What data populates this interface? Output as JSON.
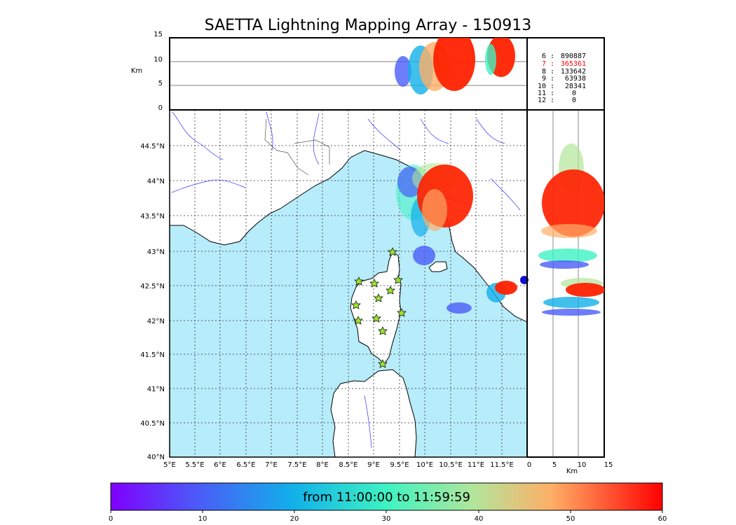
{
  "title": "SAETTA Lightning Mapping Array - 150913",
  "km_label": "Km",
  "height_ticks": [
    "15",
    "10",
    "5",
    "0"
  ],
  "lon_ticks": [
    "5°E",
    "5.5°E",
    "6°E",
    "6.5°E",
    "7°E",
    "7.5°E",
    "8°E",
    "8.5°E",
    "9°E",
    "9.5°E",
    "10°E",
    "10.5°E",
    "11°E",
    "11.5°E"
  ],
  "lat_ticks": [
    "44.5°N",
    "44°N",
    "43.5°N",
    "43°N",
    "42.5°N",
    "42°N",
    "41.5°N",
    "41°N",
    "40.5°N",
    "40°N"
  ],
  "right_km_ticks": [
    "0",
    "5",
    "10",
    "15"
  ],
  "stations": [
    {
      "n": "6",
      "v": "890887",
      "color": "#000000"
    },
    {
      "n": "7",
      "v": "365361",
      "color": "#ff0000"
    },
    {
      "n": "8",
      "v": "133642",
      "color": "#000000"
    },
    {
      "n": "9",
      "v": "63938",
      "color": "#000000"
    },
    {
      "n": "10",
      "v": "28341",
      "color": "#000000"
    },
    {
      "n": "11",
      "v": "0",
      "color": "#000000"
    },
    {
      "n": "12",
      "v": "0",
      "color": "#000000"
    }
  ],
  "colorbar": {
    "caption": "from 11:00:00 to 11:59:59",
    "ticks": [
      "0",
      "10",
      "20",
      "30",
      "40",
      "50",
      "60"
    ]
  },
  "colors": {
    "sea": "#b7ecfa",
    "land": "#ffffff",
    "coast": "#000000",
    "rivers": "#3333ff",
    "station_marker": "#9be22d"
  }
}
